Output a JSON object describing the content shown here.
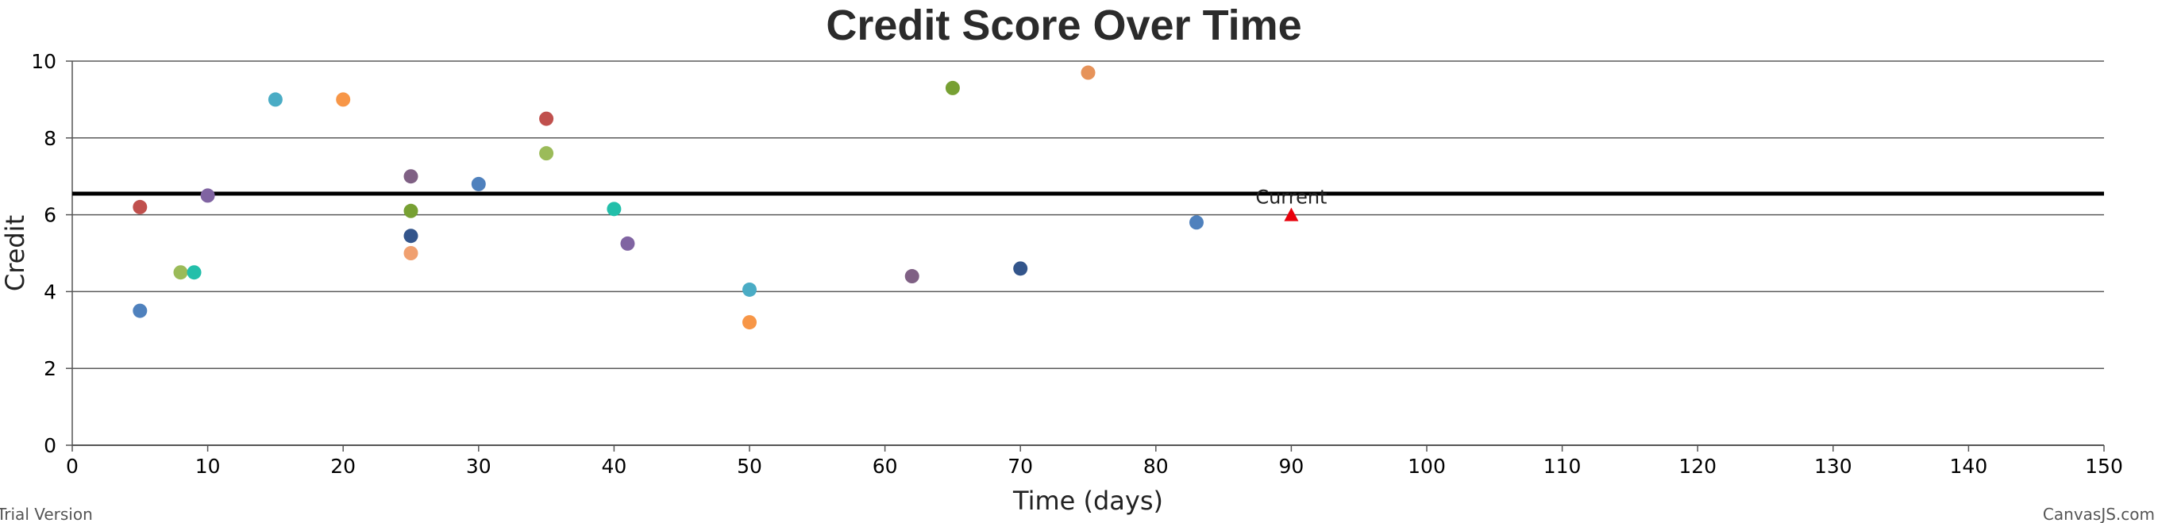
{
  "chart_data": {
    "type": "scatter",
    "title": "Credit Score Over Time",
    "xlabel": "Time (days)",
    "ylabel": "Credit",
    "xlim": [
      0,
      150
    ],
    "ylim": [
      0,
      10
    ],
    "x_ticks": [
      0,
      10,
      20,
      30,
      40,
      50,
      60,
      70,
      80,
      90,
      100,
      110,
      120,
      130,
      140,
      150
    ],
    "y_ticks": [
      0,
      2,
      4,
      6,
      8,
      10
    ],
    "grid": "horizontal",
    "points": [
      {
        "x": 5,
        "y": 6.2,
        "color": "#c0504d"
      },
      {
        "x": 5,
        "y": 3.5,
        "color": "#4f81bd"
      },
      {
        "x": 8,
        "y": 4.5,
        "color": "#9bbb59"
      },
      {
        "x": 9,
        "y": 4.5,
        "color": "#23bfaa"
      },
      {
        "x": 10,
        "y": 6.5,
        "color": "#8064a2"
      },
      {
        "x": 15,
        "y": 9.0,
        "color": "#4aacc5"
      },
      {
        "x": 20,
        "y": 9.0,
        "color": "#f79647"
      },
      {
        "x": 25,
        "y": 7.0,
        "color": "#7f6084"
      },
      {
        "x": 25,
        "y": 6.1,
        "color": "#77a033"
      },
      {
        "x": 25,
        "y": 5.45,
        "color": "#33558b"
      },
      {
        "x": 25,
        "y": 5.0,
        "color": "#f0a070"
      },
      {
        "x": 30,
        "y": 6.8,
        "color": "#4f81bd"
      },
      {
        "x": 35,
        "y": 8.5,
        "color": "#c0504d"
      },
      {
        "x": 35,
        "y": 7.6,
        "color": "#9bbb59"
      },
      {
        "x": 40,
        "y": 6.15,
        "color": "#23bfaa"
      },
      {
        "x": 41,
        "y": 5.25,
        "color": "#8064a2"
      },
      {
        "x": 50,
        "y": 4.05,
        "color": "#4aacc5"
      },
      {
        "x": 50,
        "y": 3.2,
        "color": "#f79647"
      },
      {
        "x": 62,
        "y": 4.4,
        "color": "#7f6084"
      },
      {
        "x": 65,
        "y": 9.3,
        "color": "#77a033"
      },
      {
        "x": 70,
        "y": 4.6,
        "color": "#33558b"
      },
      {
        "x": 75,
        "y": 9.7,
        "color": "#e6935a"
      },
      {
        "x": 83,
        "y": 5.8,
        "color": "#4f81bd"
      }
    ],
    "current": {
      "x": 90,
      "y": 6.0,
      "label": "Current",
      "color": "#e8000b"
    },
    "reference_line": {
      "y": 6.55,
      "color": "#000000"
    }
  },
  "credits": {
    "left": "Trial Version",
    "right": "CanvasJS.com"
  }
}
